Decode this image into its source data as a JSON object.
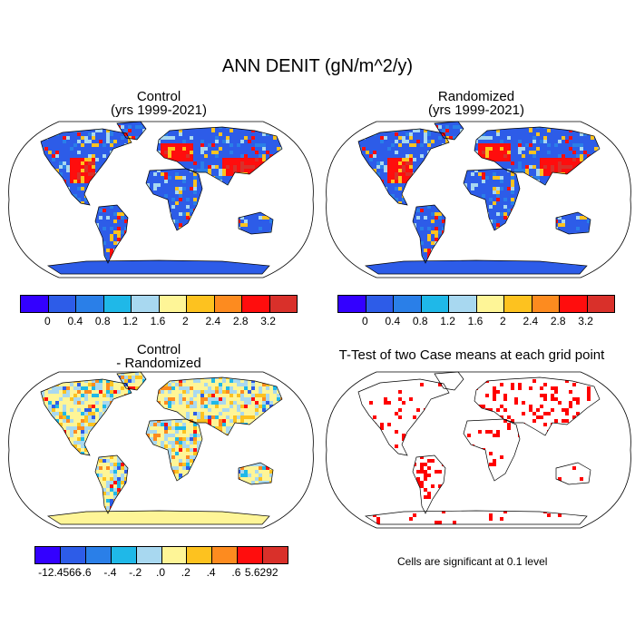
{
  "figure": {
    "title": "ANN DENIT (gN/m^2/y)"
  },
  "panels": [
    {
      "id": "control",
      "title_line1": "Control",
      "title_line2": "(yrs 1999-2021)",
      "field_type": "absolute"
    },
    {
      "id": "randomized",
      "title_line1": "Randomized",
      "title_line2": "(yrs 1999-2021)",
      "field_type": "absolute"
    },
    {
      "id": "difference",
      "title_line1": "Control",
      "title_line2": "- Randomized",
      "field_type": "difference"
    },
    {
      "id": "ttest",
      "title_line1": "T-Test of two Case means at each grid point",
      "title_line2": "",
      "field_type": "significance"
    }
  ],
  "colorbars": {
    "absolute": {
      "colors": [
        "#3300ff",
        "#2d5ce8",
        "#2a7fe8",
        "#1fb8e8",
        "#a8d8f0",
        "#fef597",
        "#fdc21f",
        "#fd8b1f",
        "#ff0d0d",
        "#d9302a"
      ],
      "labels": [
        "0",
        "0.4",
        "0.8",
        "1.2",
        "1.6",
        "2",
        "2.4",
        "2.8",
        "3.2"
      ]
    },
    "difference": {
      "colors": [
        "#3300ff",
        "#2d5ce8",
        "#2a7fe8",
        "#1fb8e8",
        "#a8d8f0",
        "#fef597",
        "#fdc21f",
        "#fd8b1f",
        "#ff0d0d",
        "#d9302a"
      ],
      "labels": [
        "-12.4566",
        "-.6",
        "-.4",
        "-.2",
        ".0",
        ".2",
        ".4",
        ".6",
        "5.6292"
      ]
    }
  },
  "significance_note": "Cells are significant at 0.1 level",
  "colors": {
    "ocean": "#ffffff",
    "coast": "#000000",
    "significant": "#ff0000"
  }
}
